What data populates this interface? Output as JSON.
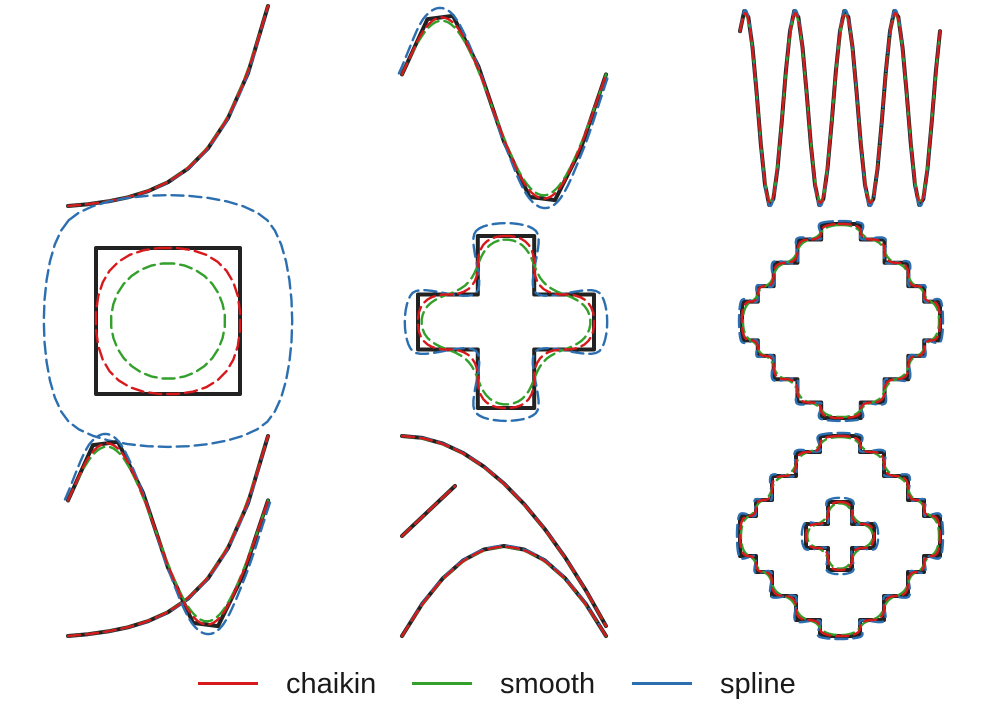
{
  "chart_data": {
    "type": "line",
    "title": "",
    "grid": false,
    "legend_position": "bottom",
    "series": [
      {
        "name": "chaikin",
        "color": "#d7191c",
        "dash": true
      },
      {
        "name": "smooth",
        "color": "#33a02c",
        "dash": true
      },
      {
        "name": "spline",
        "color": "#2c6fb0",
        "dash": true
      }
    ],
    "original_color": "#222222",
    "panels": [
      {
        "id": "exp-curve",
        "shape": "exponential"
      },
      {
        "id": "sine-one-period",
        "shape": "sine"
      },
      {
        "id": "sine-many-periods",
        "shape": "oscillation"
      },
      {
        "id": "square",
        "shape": "square"
      },
      {
        "id": "plus",
        "shape": "cross"
      },
      {
        "id": "stepped-octagon",
        "shape": "stepped-ring"
      },
      {
        "id": "sine-and-exp",
        "shape": "overlay"
      },
      {
        "id": "parabolas",
        "shape": "arcs"
      },
      {
        "id": "ring-with-cross",
        "shape": "ring-with-hole"
      }
    ]
  }
}
